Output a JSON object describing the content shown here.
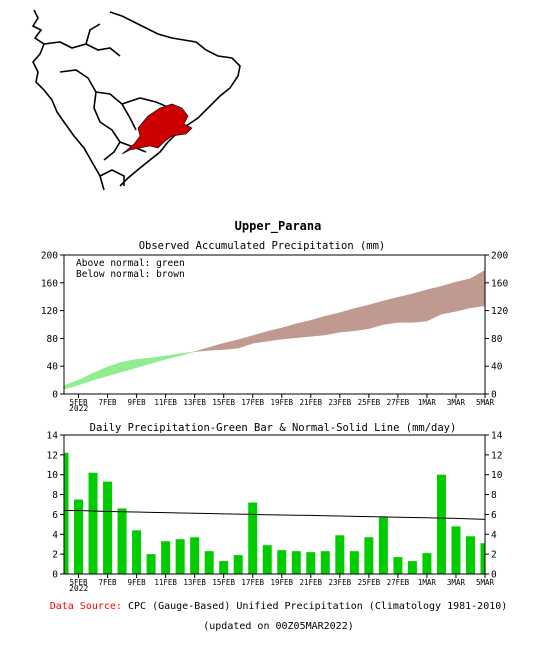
{
  "header": {
    "title": "Upper_Parana"
  },
  "region_map": {
    "highlight_color": "#cc0000"
  },
  "colors": {
    "above_fill": "#90ee90",
    "below_fill": "#c09a90",
    "daily_bar": "#00cc00",
    "normal_line": "#000000",
    "source_label": "#ff0000"
  },
  "footer": {
    "source_label": "Data Source:",
    "source_text": "CPC (Gauge-Based) Unified Precipitation (Climatology 1981-2010)",
    "updated_text": "(updated on 00Z05MAR2022)"
  },
  "chart_data": [
    {
      "type": "area",
      "title": "Observed Accumulated Precipitation (mm)",
      "annotations": [
        "Above normal: green",
        "Below normal: brown"
      ],
      "ylim": [
        0,
        200
      ],
      "yticks": [
        "0",
        "40",
        "80",
        "120",
        "160",
        "200"
      ],
      "xticks": [
        "5FEB",
        "7FEB",
        "9FEB",
        "11FEB",
        "13FEB",
        "15FEB",
        "17FEB",
        "19FEB",
        "21FEB",
        "23FEB",
        "25FEB",
        "27FEB",
        "1MAR",
        "3MAR",
        "5MAR"
      ],
      "year_label": "2022",
      "dates": [
        "4FEB",
        "5FEB",
        "6FEB",
        "7FEB",
        "8FEB",
        "9FEB",
        "10FEB",
        "11FEB",
        "12FEB",
        "13FEB",
        "14FEB",
        "15FEB",
        "16FEB",
        "17FEB",
        "18FEB",
        "19FEB",
        "20FEB",
        "21FEB",
        "22FEB",
        "23FEB",
        "24FEB",
        "25FEB",
        "26FEB",
        "27FEB",
        "28FEB",
        "1MAR",
        "2MAR",
        "3MAR",
        "4MAR",
        "5MAR"
      ],
      "series": [
        {
          "name": "Observed",
          "values": [
            12,
            20,
            30,
            39,
            46,
            50,
            52,
            55,
            58,
            61,
            63,
            64,
            66,
            73,
            76,
            79,
            81,
            83,
            85,
            89,
            91,
            94,
            100,
            103,
            103,
            105,
            115,
            119,
            124,
            127
          ]
        },
        {
          "name": "Normal",
          "values": [
            7,
            13,
            20,
            26,
            32,
            38,
            44,
            50,
            55,
            61,
            67,
            73,
            78,
            84,
            90,
            95,
            101,
            106,
            112,
            117,
            123,
            128,
            134,
            139,
            144,
            150,
            155,
            161,
            166,
            178
          ]
        }
      ]
    },
    {
      "type": "bar",
      "title": "Daily Precipitation-Green Bar & Normal-Solid Line (mm/day)",
      "ylim": [
        0,
        14
      ],
      "yticks": [
        "0",
        "2",
        "4",
        "6",
        "8",
        "10",
        "12",
        "14"
      ],
      "xticks": [
        "5FEB",
        "7FEB",
        "9FEB",
        "11FEB",
        "13FEB",
        "15FEB",
        "17FEB",
        "19FEB",
        "21FEB",
        "23FEB",
        "25FEB",
        "27FEB",
        "1MAR",
        "3MAR",
        "5MAR"
      ],
      "year_label": "2022",
      "dates": [
        "4FEB",
        "5FEB",
        "6FEB",
        "7FEB",
        "8FEB",
        "9FEB",
        "10FEB",
        "11FEB",
        "12FEB",
        "13FEB",
        "14FEB",
        "15FEB",
        "16FEB",
        "17FEB",
        "18FEB",
        "19FEB",
        "20FEB",
        "21FEB",
        "22FEB",
        "23FEB",
        "24FEB",
        "25FEB",
        "26FEB",
        "27FEB",
        "28FEB",
        "1MAR",
        "2MAR",
        "3MAR",
        "4MAR",
        "5MAR"
      ],
      "series": [
        {
          "name": "Daily",
          "values": [
            12.2,
            7.5,
            10.2,
            9.3,
            6.6,
            4.4,
            2.0,
            3.3,
            3.5,
            3.7,
            2.3,
            1.3,
            1.9,
            7.2,
            2.9,
            2.4,
            2.3,
            2.2,
            2.3,
            3.9,
            2.3,
            3.7,
            5.7,
            1.7,
            1.3,
            2.1,
            10.0,
            4.8,
            3.8,
            3.1
          ]
        },
        {
          "name": "Normal",
          "values": [
            6.4,
            6.4,
            6.35,
            6.3,
            6.27,
            6.24,
            6.21,
            6.18,
            6.15,
            6.12,
            6.09,
            6.06,
            6.03,
            6.0,
            5.97,
            5.94,
            5.92,
            5.9,
            5.87,
            5.84,
            5.81,
            5.78,
            5.75,
            5.72,
            5.69,
            5.66,
            5.63,
            5.6,
            5.55,
            5.5
          ]
        }
      ]
    }
  ]
}
